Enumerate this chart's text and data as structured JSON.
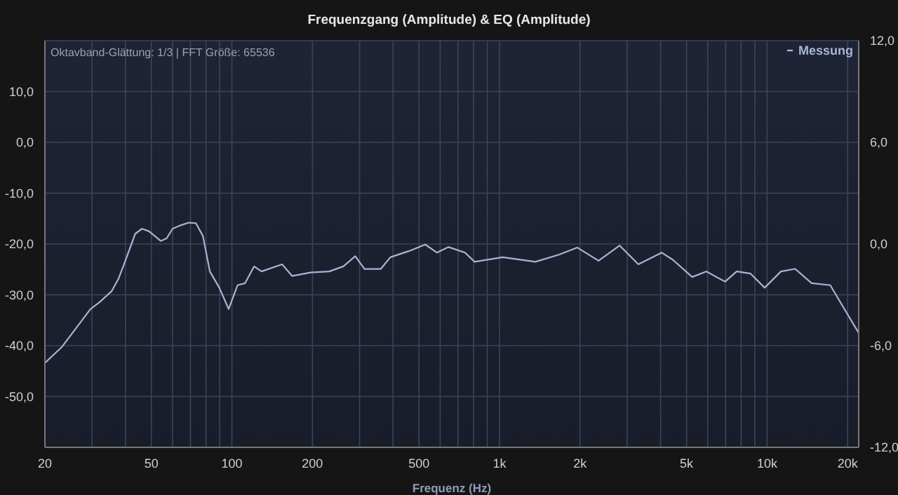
{
  "chart_data": {
    "type": "line",
    "title": "Frequenzgang (Amplitude) & EQ (Amplitude)",
    "xlabel": "Frequenz (Hz)",
    "annotations": [
      "Oktavband-Glättung: 1/3 | FFT Größe: 65536"
    ],
    "log": "x",
    "grid": true,
    "legend": "top right",
    "marker": "none",
    "line_style": "solid",
    "xlim": [
      20,
      22000
    ],
    "xticks": [
      {
        "value": 20,
        "label": "20"
      },
      {
        "value": 30,
        "label": null
      },
      {
        "value": 40,
        "label": null
      },
      {
        "value": 50,
        "label": "50"
      },
      {
        "value": 60,
        "label": null
      },
      {
        "value": 70,
        "label": null
      },
      {
        "value": 80,
        "label": null
      },
      {
        "value": 90,
        "label": null
      },
      {
        "value": 100,
        "label": "100"
      },
      {
        "value": 200,
        "label": "200"
      },
      {
        "value": 300,
        "label": null
      },
      {
        "value": 400,
        "label": null
      },
      {
        "value": 500,
        "label": "500"
      },
      {
        "value": 600,
        "label": null
      },
      {
        "value": 700,
        "label": null
      },
      {
        "value": 800,
        "label": null
      },
      {
        "value": 900,
        "label": null
      },
      {
        "value": 1000,
        "label": "1k"
      },
      {
        "value": 2000,
        "label": "2k"
      },
      {
        "value": 3000,
        "label": null
      },
      {
        "value": 4000,
        "label": null
      },
      {
        "value": 5000,
        "label": "5k"
      },
      {
        "value": 6000,
        "label": null
      },
      {
        "value": 7000,
        "label": null
      },
      {
        "value": 8000,
        "label": null
      },
      {
        "value": 9000,
        "label": null
      },
      {
        "value": 10000,
        "label": "10k"
      },
      {
        "value": 20000,
        "label": "20k"
      }
    ],
    "ylim": [
      -60,
      20
    ],
    "yticks": [
      {
        "value": -50,
        "label": "-50,0"
      },
      {
        "value": -40,
        "label": "-40,0"
      },
      {
        "value": -30,
        "label": "-30,0"
      },
      {
        "value": -20,
        "label": "-20,0"
      },
      {
        "value": -10,
        "label": "-10,0"
      },
      {
        "value": 0,
        "label": "0,0"
      },
      {
        "value": 10,
        "label": "10,0"
      }
    ],
    "y2lim": [
      -12,
      12
    ],
    "y2ticks": [
      {
        "value": -12,
        "label": "-12,0"
      },
      {
        "value": -6,
        "label": "-6,0"
      },
      {
        "value": 0,
        "label": "0,0"
      },
      {
        "value": 6,
        "label": "6,0"
      },
      {
        "value": 12,
        "label": "12,0"
      }
    ],
    "series": [
      {
        "name": "Messung",
        "color": "#a9b3d4",
        "x": [
          20,
          23.2,
          26.2,
          29.6,
          32.1,
          35.5,
          37.7,
          40.1,
          43.5,
          46.1,
          49,
          54.2,
          57,
          60,
          63.7,
          69,
          73.3,
          77.9,
          82.7,
          89.7,
          97.2,
          105,
          112,
          121,
          129,
          154,
          168,
          197,
          231,
          261,
          289,
          313,
          360,
          391,
          458,
          528,
          584,
          645,
          743,
          807,
          1028,
          1362,
          1667,
          1954,
          2345,
          2812,
          3303,
          4040,
          4444,
          5250,
          5925,
          6966,
          7700,
          8660,
          9790,
          11270,
          12730,
          14670,
          17220,
          19450,
          22000
        ],
        "values": [
          -43.4,
          -40.2,
          -36.5,
          -32.8,
          -31.4,
          -29.3,
          -26.8,
          -23.1,
          -18.0,
          -17.0,
          -17.5,
          -19.4,
          -18.9,
          -17.0,
          -16.4,
          -15.8,
          -15.9,
          -18.4,
          -25.4,
          -28.6,
          -32.8,
          -28.1,
          -27.7,
          -24.4,
          -25.4,
          -24.0,
          -26.3,
          -25.6,
          -25.4,
          -24.4,
          -22.4,
          -24.9,
          -24.9,
          -22.6,
          -21.4,
          -20.1,
          -21.7,
          -20.6,
          -21.7,
          -23.5,
          -22.6,
          -23.5,
          -22.1,
          -20.7,
          -23.3,
          -20.3,
          -24.0,
          -21.7,
          -23.1,
          -26.5,
          -25.4,
          -27.4,
          -25.4,
          -25.8,
          -28.6,
          -25.4,
          -24.9,
          -27.7,
          -28.1,
          -32.8,
          -37.5
        ]
      }
    ]
  }
}
